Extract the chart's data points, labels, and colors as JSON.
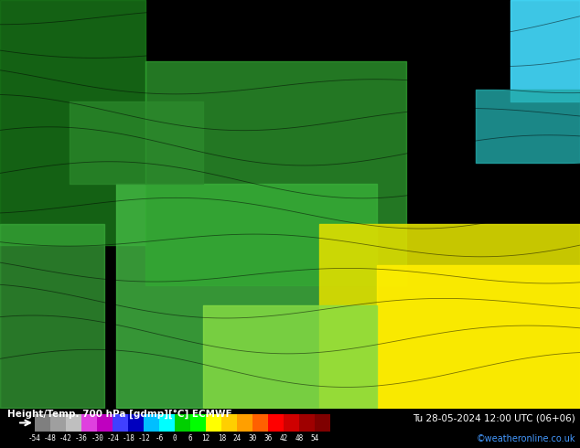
{
  "title_left": "Height/Temp. 700 hPa [gdmp][°C] ECMWF",
  "title_right": "Tu 28-05-2024 12:00 UTC (06+06)",
  "credit": "©weatheronline.co.uk",
  "colorbar_ticks": [
    -54,
    -48,
    -42,
    -36,
    -30,
    -24,
    -18,
    -12,
    -6,
    0,
    6,
    12,
    18,
    24,
    30,
    36,
    42,
    48,
    54
  ],
  "colorbar_colors": [
    "#7f7f7f",
    "#9f9f9f",
    "#bfbfbf",
    "#df40df",
    "#bf00bf",
    "#4040ff",
    "#0000bf",
    "#00bfff",
    "#00ffff",
    "#00cf00",
    "#00ff00",
    "#ffff00",
    "#ffcf00",
    "#ff9f00",
    "#ff6000",
    "#ff0000",
    "#cf0000",
    "#9f0000",
    "#7f0000"
  ],
  "map_background": "#228B22",
  "fig_width": 6.34,
  "fig_height": 4.9,
  "dpi": 100
}
